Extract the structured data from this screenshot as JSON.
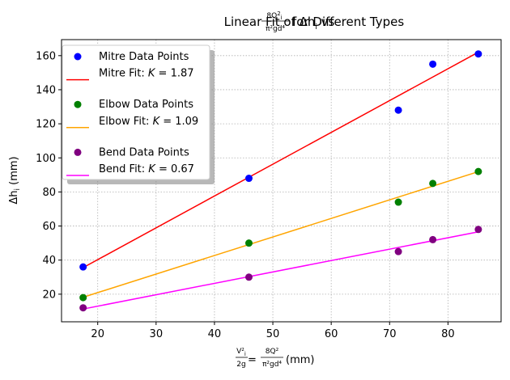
{
  "chart_data": {
    "type": "scatter",
    "title": {
      "pre": "Linear Fit of Δh",
      "pre_sub": "i",
      "mid": " vs ",
      "frac_num": "8Q",
      "frac_num_sup": "2",
      "frac_num_sub": "i",
      "frac_den": "π²gd⁴",
      "post": " for Different Types"
    },
    "xlabel": {
      "frac1_num": "V²",
      "frac1_num_sub": "i",
      "frac1_den": "2g",
      "eq": " = ",
      "frac2_num": "8Q²",
      "frac2_den": "π²gd⁴",
      "unit": " (mm)"
    },
    "ylabel": {
      "main": "Δh",
      "sub": "i",
      "unit": " (mm)"
    },
    "xlim": [
      13.8,
      89.1
    ],
    "ylim": [
      3.8,
      169.4
    ],
    "xticks": [
      20,
      30,
      40,
      50,
      60,
      70,
      80
    ],
    "yticks": [
      20,
      40,
      60,
      80,
      100,
      120,
      140,
      160
    ],
    "grid": true,
    "legend_position": "top-left",
    "x": [
      17.5,
      45.9,
      71.5,
      77.4,
      85.2
    ],
    "series": [
      {
        "name": "Mitre Data Points",
        "kind": "points",
        "color": "#0000ff",
        "values": [
          36,
          88,
          128,
          155,
          161
        ]
      },
      {
        "name": "Mitre Fit",
        "kind": "line",
        "color": "#ff0000",
        "K": "1.87",
        "x": [
          17.5,
          85.2
        ],
        "values": [
          35.6,
          162.0
        ]
      },
      {
        "name": "Elbow Data Points",
        "kind": "points",
        "color": "#008000",
        "values": [
          18,
          50,
          74,
          85,
          92
        ]
      },
      {
        "name": "Elbow Fit",
        "kind": "line",
        "color": "#ffa500",
        "K": "1.09",
        "x": [
          17.5,
          85.2
        ],
        "values": [
          18.2,
          91.9
        ]
      },
      {
        "name": "Bend Data Points",
        "kind": "points",
        "color": "#800080",
        "values": [
          12,
          30,
          45,
          52,
          58
        ]
      },
      {
        "name": "Bend Fit",
        "kind": "line",
        "color": "#ff00ff",
        "K": "0.67",
        "x": [
          17.5,
          85.2
        ],
        "values": [
          11.3,
          56.6
        ]
      }
    ]
  }
}
